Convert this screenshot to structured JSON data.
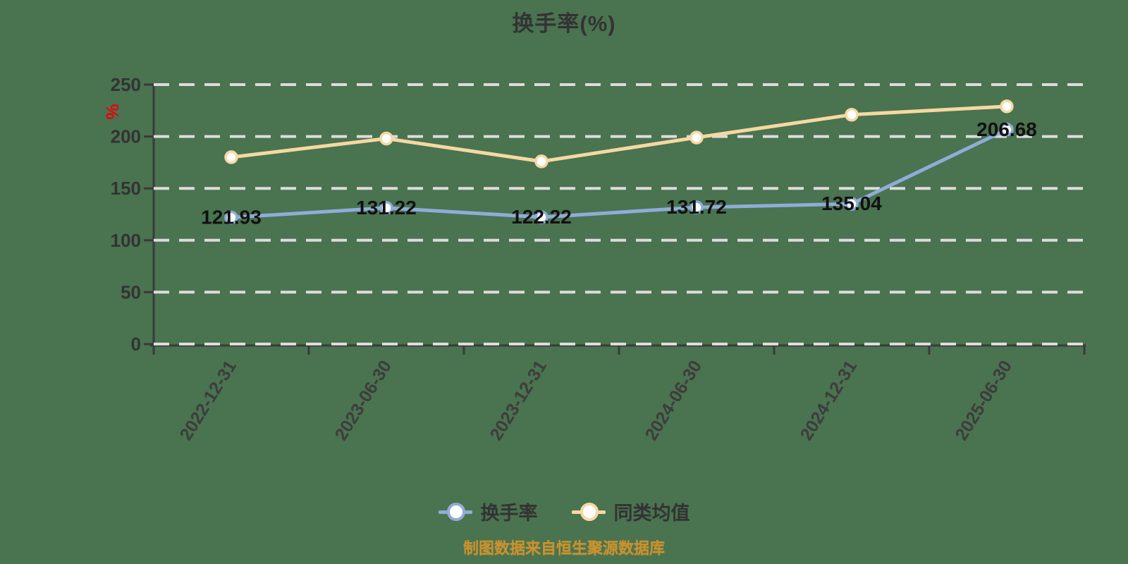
{
  "title": "换手率(%)",
  "y_axis_unit": "%",
  "footer": "制图数据来自恒生聚源数据库",
  "colors": {
    "background": "#4A7350",
    "grid": "#DCDCDC",
    "axis": "#3A3A3A",
    "axis_label": "#333333",
    "data_label": "#111111",
    "unit_label": "#E8000D",
    "footer_text": "#C9922E",
    "turnover_line": "#8FACD8",
    "average_line": "#F6D8A2"
  },
  "legend": {
    "items": [
      {
        "label": "换手率",
        "color": "#8FACD8"
      },
      {
        "label": "同类均值",
        "color": "#F6D8A2"
      }
    ]
  },
  "chart_data": {
    "type": "line",
    "title": "换手率(%)",
    "categories": [
      "2022-12-31",
      "2023-06-30",
      "2023-12-31",
      "2024-06-30",
      "2024-12-31",
      "2025-06-30"
    ],
    "series": [
      {
        "name": "换手率",
        "color": "#8FACD8",
        "values": [
          121.93,
          131.22,
          122.22,
          131.72,
          135.04,
          206.68
        ],
        "labels": [
          "121.93",
          "131.22",
          "122.22",
          "131.72",
          "135.04",
          "206.68"
        ],
        "show_labels": true
      },
      {
        "name": "同类均值",
        "color": "#F6D8A2",
        "values": [
          180,
          198,
          176,
          199,
          221,
          229
        ],
        "labels": [],
        "show_labels": false
      }
    ],
    "xlabel": "",
    "ylabel": "%",
    "ylim": [
      0,
      250
    ],
    "yticks": [
      0,
      50,
      100,
      150,
      200,
      250
    ],
    "grid": "dashed-horizontal",
    "legend_position": "bottom",
    "marker": "circle-white-fill"
  }
}
